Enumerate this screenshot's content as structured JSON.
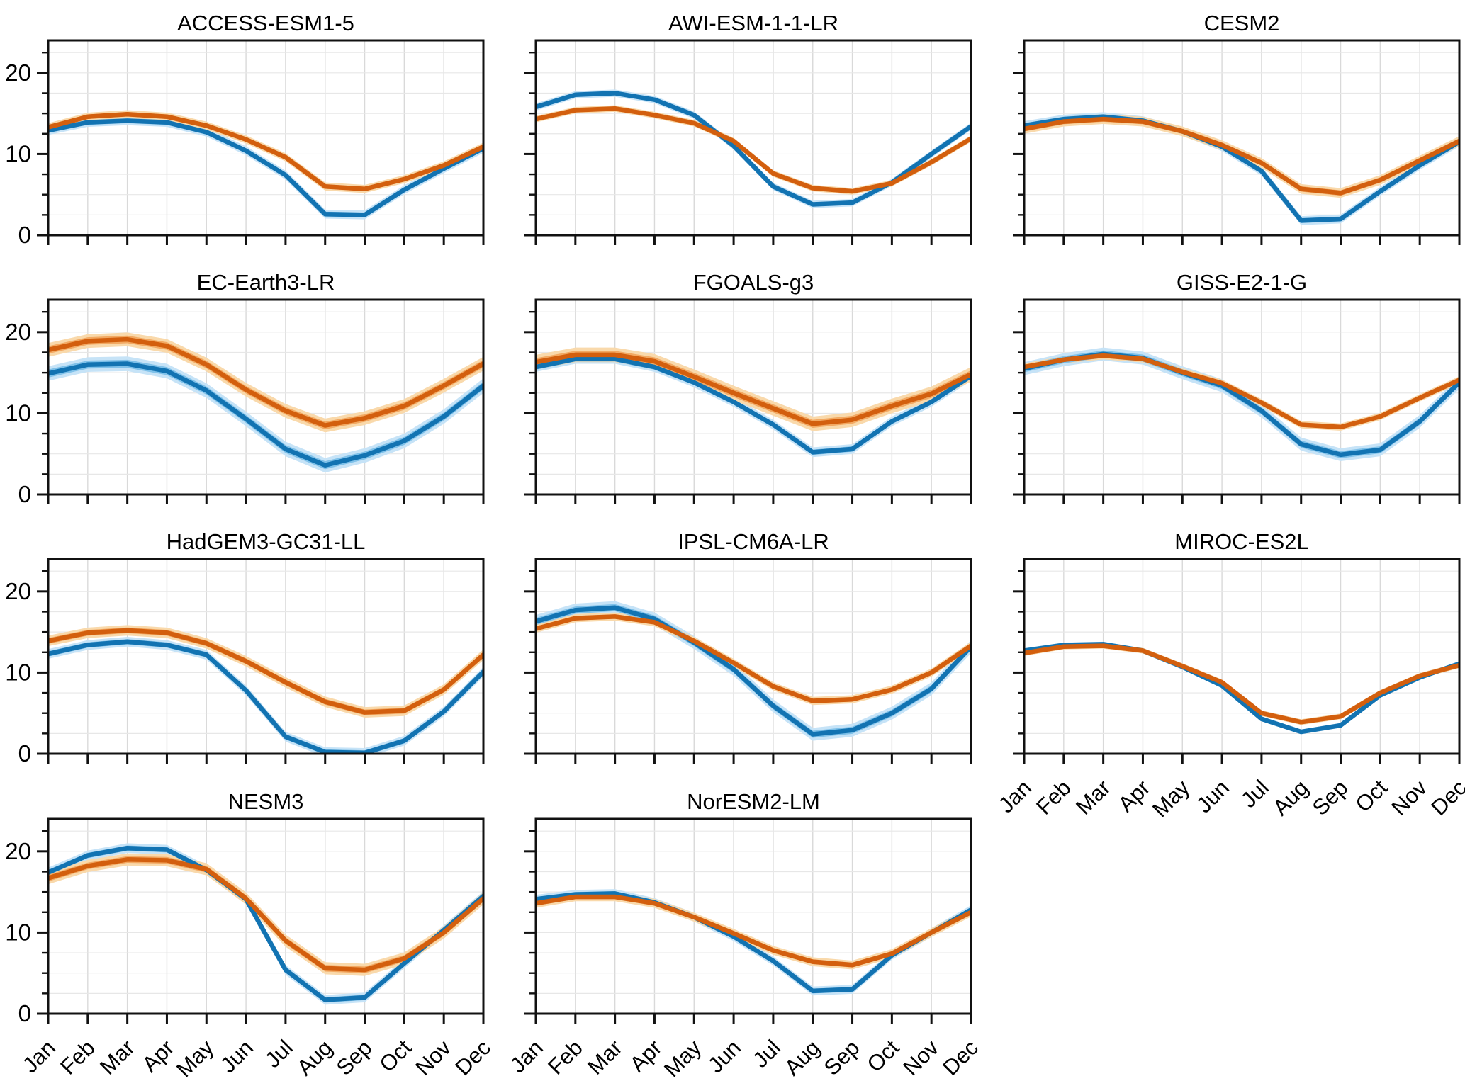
{
  "figure": {
    "background": "#ffffff",
    "axis_color": "#111111",
    "grid_vertical_color": "#d9d9d9",
    "grid_horizontal_color": "#e7e7e7"
  },
  "chart_data": {
    "type": "line",
    "layout": "3x4-small-multiples",
    "categories": [
      "Jan",
      "Feb",
      "Mar",
      "Apr",
      "May",
      "Jun",
      "Jul",
      "Aug",
      "Sep",
      "Oct",
      "Nov",
      "Dec"
    ],
    "ylim": [
      0,
      24
    ],
    "yticks": [
      0,
      10,
      20
    ],
    "ytick_minor_step": 2.5,
    "grid": true,
    "legend": "none",
    "colors": {
      "blue": "#1273b2",
      "blue_band_inner": "#7fc1e9",
      "blue_band_outer": "#c6e3f7",
      "orange": "#d35f0e",
      "orange_band_inner": "#f2a963",
      "orange_band_outer": "#f9d9ab"
    },
    "panels": [
      {
        "title": "ACCESS-ESM1-5",
        "series": [
          {
            "name": "blue-series",
            "color": "blue",
            "band": 0.55,
            "values": [
              12.9,
              13.9,
              14.1,
              13.9,
              12.7,
              10.4,
              7.4,
              2.6,
              2.5,
              5.6,
              8.2,
              10.7
            ]
          },
          {
            "name": "orange-series",
            "color": "orange",
            "band": 0.5,
            "values": [
              13.3,
              14.6,
              14.9,
              14.6,
              13.5,
              11.8,
              9.6,
              6.0,
              5.7,
              6.9,
              8.6,
              10.9
            ]
          }
        ]
      },
      {
        "title": "AWI-ESM-1-1-LR",
        "series": [
          {
            "name": "blue-series",
            "color": "blue",
            "band": 0.45,
            "values": [
              15.8,
              17.3,
              17.5,
              16.7,
              14.8,
              11.0,
              6.0,
              3.8,
              4.0,
              6.5,
              10.0,
              13.4
            ]
          },
          {
            "name": "orange-series",
            "color": "orange",
            "band": 0.4,
            "values": [
              14.3,
              15.4,
              15.6,
              14.8,
              13.8,
              11.6,
              7.6,
              5.8,
              5.4,
              6.4,
              9.0,
              11.9
            ]
          }
        ]
      },
      {
        "title": "CESM2",
        "series": [
          {
            "name": "blue-series",
            "color": "blue",
            "band": 0.55,
            "values": [
              13.5,
              14.3,
              14.6,
              14.1,
              12.8,
              10.9,
              7.9,
              1.8,
              2.0,
              5.4,
              8.6,
              11.5
            ]
          },
          {
            "name": "orange-series",
            "color": "orange",
            "band": 0.6,
            "values": [
              13.1,
              14.0,
              14.3,
              14.0,
              12.8,
              11.1,
              8.9,
              5.7,
              5.2,
              6.8,
              9.2,
              11.6
            ]
          }
        ]
      },
      {
        "title": "EC-Earth3-LR",
        "series": [
          {
            "name": "blue-series",
            "color": "blue",
            "band": 0.9,
            "values": [
              14.9,
              16.0,
              16.1,
              15.2,
              12.8,
              9.3,
              5.6,
              3.6,
              4.8,
              6.6,
              9.6,
              13.4
            ]
          },
          {
            "name": "orange-series",
            "color": "orange",
            "band": 0.85,
            "values": [
              17.8,
              18.9,
              19.1,
              18.3,
              16.0,
              12.9,
              10.3,
              8.5,
              9.4,
              10.9,
              13.4,
              16.1
            ]
          }
        ]
      },
      {
        "title": "FGOALS-g3",
        "series": [
          {
            "name": "blue-series",
            "color": "blue",
            "band": 0.6,
            "values": [
              15.7,
              16.7,
              16.7,
              15.7,
              13.8,
              11.4,
              8.6,
              5.2,
              5.6,
              9.0,
              11.4,
              14.6
            ]
          },
          {
            "name": "orange-series",
            "color": "orange",
            "band": 0.9,
            "values": [
              16.3,
              17.2,
              17.2,
              16.4,
              14.5,
              12.5,
              10.6,
              8.7,
              9.2,
              10.9,
              12.4,
              14.8
            ]
          }
        ]
      },
      {
        "title": "GISS-E2-1-G",
        "series": [
          {
            "name": "blue-series",
            "color": "blue",
            "band": 0.8,
            "values": [
              15.5,
              16.6,
              17.3,
              16.8,
              15.0,
              13.4,
              10.3,
              6.2,
              4.9,
              5.5,
              9.0,
              13.8
            ]
          },
          {
            "name": "orange-series",
            "color": "orange",
            "band": 0.45,
            "values": [
              15.7,
              16.6,
              17.1,
              16.7,
              15.1,
              13.7,
              11.3,
              8.6,
              8.3,
              9.6,
              11.9,
              14.1
            ]
          }
        ]
      },
      {
        "title": "HadGEM3-GC31-LL",
        "series": [
          {
            "name": "blue-series",
            "color": "blue",
            "band": 0.6,
            "values": [
              12.3,
              13.4,
              13.8,
              13.4,
              12.2,
              7.8,
              2.1,
              0.2,
              0.1,
              1.6,
              5.2,
              10.1
            ]
          },
          {
            "name": "orange-series",
            "color": "orange",
            "band": 0.65,
            "values": [
              13.9,
              14.9,
              15.2,
              14.9,
              13.6,
              11.4,
              8.8,
              6.4,
              5.1,
              5.3,
              7.9,
              12.2
            ]
          }
        ]
      },
      {
        "title": "IPSL-CM6A-LR",
        "series": [
          {
            "name": "blue-series",
            "color": "blue",
            "band": 0.8,
            "values": [
              16.3,
              17.7,
              18.0,
              16.6,
              13.7,
              10.4,
              5.9,
              2.4,
              2.9,
              5.0,
              8.0,
              13.2
            ]
          },
          {
            "name": "orange-series",
            "color": "orange",
            "band": 0.5,
            "values": [
              15.4,
              16.7,
              16.9,
              16.2,
              13.9,
              11.2,
              8.3,
              6.5,
              6.7,
              7.9,
              10.0,
              13.3
            ]
          }
        ]
      },
      {
        "title": "MIROC-ES2L",
        "series": [
          {
            "name": "blue-series",
            "color": "blue",
            "band": 0.3,
            "values": [
              12.7,
              13.4,
              13.5,
              12.7,
              10.7,
              8.4,
              4.3,
              2.7,
              3.5,
              7.2,
              9.4,
              11.1
            ]
          },
          {
            "name": "orange-series",
            "color": "orange",
            "band": 0.35,
            "values": [
              12.4,
              13.2,
              13.3,
              12.7,
              10.8,
              8.8,
              5.0,
              3.9,
              4.6,
              7.5,
              9.6,
              10.9
            ]
          }
        ]
      },
      {
        "title": "NESM3",
        "series": [
          {
            "name": "blue-series",
            "color": "blue",
            "band": 0.6,
            "values": [
              17.4,
              19.5,
              20.4,
              20.2,
              17.7,
              14.1,
              5.4,
              1.7,
              2.0,
              6.2,
              10.3,
              14.5
            ]
          },
          {
            "name": "orange-series",
            "color": "orange",
            "band": 0.75,
            "values": [
              16.7,
              18.2,
              19.0,
              18.9,
              17.8,
              14.2,
              9.0,
              5.6,
              5.4,
              6.8,
              10.0,
              14.2
            ]
          }
        ]
      },
      {
        "title": "NorESM2-LM",
        "series": [
          {
            "name": "blue-series",
            "color": "blue",
            "band": 0.55,
            "values": [
              14.1,
              14.7,
              14.8,
              13.7,
              11.9,
              9.5,
              6.5,
              2.8,
              3.0,
              7.2,
              10.0,
              12.8
            ]
          },
          {
            "name": "orange-series",
            "color": "orange",
            "band": 0.55,
            "values": [
              13.6,
              14.4,
              14.4,
              13.6,
              11.9,
              9.9,
              7.8,
              6.4,
              6.0,
              7.4,
              10.0,
              12.5
            ]
          }
        ]
      }
    ]
  }
}
